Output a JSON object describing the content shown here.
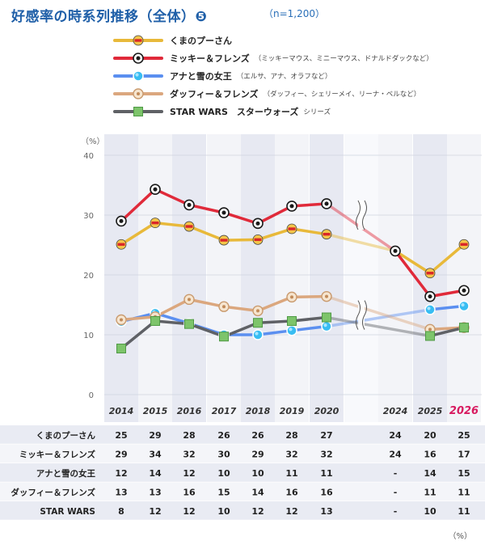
{
  "header": {
    "title": "好感率の時系列推移（全体）❺",
    "n_label": "（n=1,200）"
  },
  "colors": {
    "pooh": "#e8b93a",
    "mickey": "#e02a3a",
    "anna": "#5b8ff0",
    "duffy": "#dba77e",
    "starwars": "#5f6166",
    "accent_2026": "#d81b60"
  },
  "legend": [
    {
      "key": "pooh",
      "name": "くまのプーさん",
      "sub": "",
      "icon": "pooh-marker-icon"
    },
    {
      "key": "mickey",
      "name": "ミッキー＆フレンズ",
      "sub": "（ミッキーマウス、ミニーマウス、ドナルドダックなど）",
      "icon": "mickey-marker-icon"
    },
    {
      "key": "anna",
      "name": "アナと雪の女王",
      "sub": "（エルサ、アナ、オラフなど）",
      "icon": "snowflake-marker-icon"
    },
    {
      "key": "duffy",
      "name": "ダッフィー＆フレンズ",
      "sub": "（ダッフィー、シェリーメイ、リーナ・ベルなど）",
      "icon": "duffy-marker-icon"
    },
    {
      "key": "starwars",
      "name": "STAR WARS　スターウォーズ",
      "sub": "シリーズ",
      "icon": "green-square-marker-icon"
    }
  ],
  "chart_data": {
    "type": "line",
    "x": [
      "2014",
      "2015",
      "2016",
      "2017",
      "2018",
      "2019",
      "2020",
      "2024",
      "2025",
      "2026"
    ],
    "unit": "（%）",
    "ylim": [
      0,
      40
    ],
    "yticks": [
      "0",
      "10",
      "20",
      "30",
      "40"
    ],
    "axis_break_between": [
      "2020",
      "2024"
    ],
    "highlight_x": "2026",
    "series": [
      {
        "key": "pooh",
        "name": "くまのプーさん",
        "values": [
          25.1,
          28.7,
          28.1,
          25.8,
          25.9,
          27.7,
          26.8,
          24.0,
          20.3,
          25.1
        ],
        "labels": [
          "25",
          "29",
          "28",
          "26",
          "26",
          "28",
          "27",
          "24",
          "20",
          "25"
        ]
      },
      {
        "key": "mickey",
        "name": "ミッキー＆フレンズ",
        "values": [
          29.0,
          34.3,
          31.7,
          30.4,
          28.6,
          31.5,
          31.9,
          24.0,
          16.4,
          17.4
        ],
        "labels": [
          "29",
          "34",
          "32",
          "30",
          "29",
          "32",
          "32",
          "24",
          "16",
          "17"
        ]
      },
      {
        "key": "anna",
        "name": "アナと雪の女王",
        "values": [
          12.2,
          13.6,
          11.9,
          10.0,
          10.0,
          10.7,
          11.4,
          null,
          14.2,
          14.8
        ],
        "labels": [
          "12",
          "14",
          "12",
          "10",
          "10",
          "11",
          "11",
          "-",
          "14",
          "15"
        ]
      },
      {
        "key": "duffy",
        "name": "ダッフィー＆フレンズ",
        "values": [
          12.5,
          13.0,
          15.9,
          14.7,
          14.0,
          16.3,
          16.4,
          null,
          10.9,
          11.2
        ],
        "labels": [
          "13",
          "13",
          "16",
          "15",
          "14",
          "16",
          "16",
          "-",
          "11",
          "11"
        ]
      },
      {
        "key": "starwars",
        "name": "STAR WARS",
        "values": [
          7.7,
          12.3,
          11.8,
          9.7,
          12.0,
          12.3,
          12.9,
          null,
          9.8,
          11.2
        ],
        "labels": [
          "8",
          "12",
          "12",
          "10",
          "12",
          "12",
          "13",
          "-",
          "10",
          "11"
        ]
      }
    ]
  }
}
